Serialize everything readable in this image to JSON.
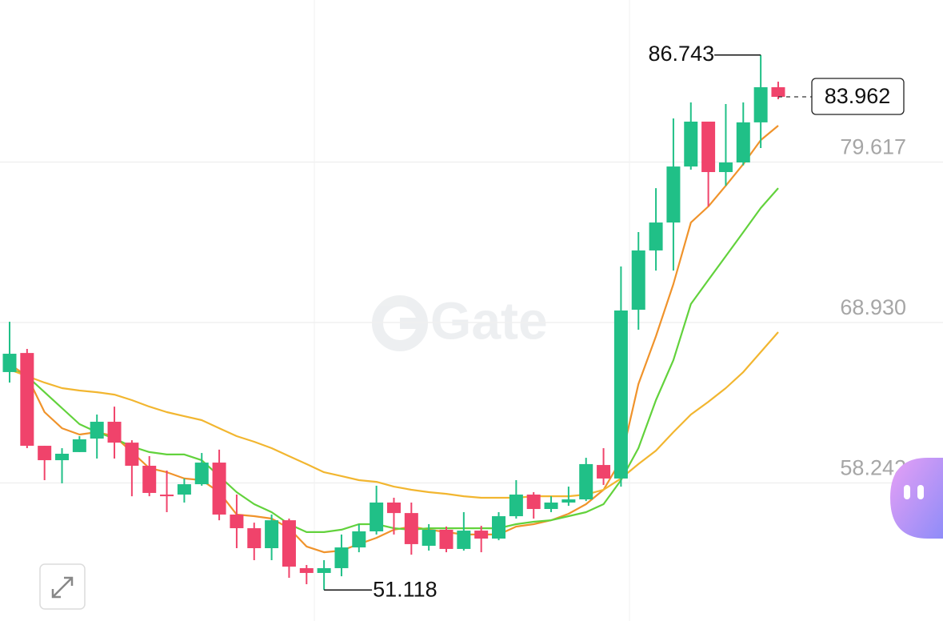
{
  "chart_data": {
    "type": "candlestick",
    "watermark": "Gate",
    "ylim": [
      49.05,
      90.41
    ],
    "yticks": [
      58.242,
      {
        "value": 68.93,
        "label": "68.930"
      },
      79.617
    ],
    "grid": true,
    "up_color": "#20c087",
    "down_color": "#f0436b",
    "open": [
      65.63,
      66.9,
      60.72,
      59.76,
      60.3,
      61.2,
      62.32,
      60.93,
      59.39,
      57.47,
      57.47,
      58.16,
      59.6,
      56.14,
      55.23,
      53.9,
      55.76,
      52.57,
      52.25,
      52.57,
      53.95,
      55.02,
      56.94,
      56.24,
      54.06,
      55.13,
      53.85,
      55.07,
      54.54,
      56.03,
      57.47,
      56.51,
      56.94,
      57.15,
      59.44,
      58.54,
      69.78,
      73.73,
      75.59,
      79.32,
      82.31,
      78.95,
      79.59,
      82.26,
      84.6
    ],
    "high": [
      68.98,
      67.17,
      60.72,
      60.56,
      61.36,
      62.8,
      63.33,
      61.09,
      60.03,
      59.07,
      58.54,
      60.24,
      60.46,
      57.47,
      55.6,
      56.14,
      55.87,
      52.78,
      53.1,
      54.81,
      55.5,
      58.06,
      57.26,
      56.94,
      55.5,
      55.34,
      56.3,
      55.39,
      56.3,
      58.43,
      57.63,
      57.36,
      58.0,
      59.92,
      60.56,
      72.66,
      74.95,
      77.88,
      82.52,
      83.59,
      82.31,
      83.48,
      83.59,
      86.743,
      84.97
    ],
    "low": [
      64.93,
      60.56,
      58.43,
      58.22,
      60.3,
      59.87,
      59.87,
      57.36,
      57.36,
      56.3,
      56.94,
      58.06,
      55.76,
      53.9,
      53.1,
      53.1,
      51.93,
      51.5,
      51.118,
      52.03,
      53.63,
      54.81,
      54.81,
      53.47,
      53.74,
      53.63,
      53.74,
      53.63,
      54.43,
      55.87,
      55.87,
      56.3,
      56.72,
      57.04,
      58.11,
      58.0,
      68.45,
      72.39,
      72.39,
      79.11,
      76.66,
      78.04,
      79.4,
      80.55,
      83.8
    ],
    "close": [
      66.85,
      60.72,
      59.76,
      60.19,
      61.15,
      62.32,
      60.93,
      59.39,
      57.58,
      57.36,
      58.16,
      59.6,
      56.14,
      55.23,
      53.9,
      55.76,
      52.67,
      52.25,
      52.57,
      53.95,
      55.02,
      56.94,
      56.24,
      54.17,
      55.13,
      53.85,
      55.07,
      54.54,
      56.03,
      57.47,
      56.51,
      56.94,
      57.15,
      59.5,
      58.54,
      69.73,
      73.73,
      75.59,
      79.32,
      82.31,
      78.95,
      79.59,
      82.26,
      84.6,
      83.962
    ],
    "lines": [
      {
        "color": "#f0932b",
        "values": [
          66.16,
          65.36,
          62.96,
          61.89,
          61.47,
          61.63,
          61.36,
          60.3,
          59.23,
          58.96,
          58.54,
          58.43,
          57.63,
          56.14,
          56.03,
          55.87,
          55.23,
          54.01,
          53.63,
          53.74,
          54.17,
          54.59,
          55.13,
          55.34,
          55.13,
          54.97,
          54.81,
          54.81,
          54.81,
          55.34,
          55.5,
          55.76,
          56.19,
          56.83,
          57.79,
          59.76,
          64.83,
          68.02,
          71.49,
          75.59,
          76.66,
          78.04,
          79.48,
          81.08,
          82.04
        ]
      },
      {
        "color": "#62d23c",
        "values": [
          65.89,
          65.36,
          64.29,
          63.23,
          62.16,
          61.63,
          61.2,
          60.67,
          60.3,
          60.14,
          60.14,
          59.76,
          58.7,
          57.63,
          56.83,
          56.3,
          55.5,
          54.97,
          54.97,
          55.13,
          55.5,
          55.5,
          55.23,
          55.13,
          55.23,
          55.23,
          55.23,
          55.23,
          55.23,
          55.5,
          55.66,
          55.76,
          56.03,
          56.3,
          56.83,
          58.43,
          60.56,
          63.76,
          66.42,
          70.16,
          71.76,
          73.35,
          74.95,
          76.55,
          77.88
        ]
      },
      {
        "color": "#f2b630",
        "values": [
          65.79,
          65.36,
          64.93,
          64.56,
          64.4,
          64.29,
          64.13,
          63.76,
          63.33,
          62.96,
          62.69,
          62.43,
          61.89,
          61.36,
          60.99,
          60.56,
          60.03,
          59.5,
          58.96,
          58.7,
          58.43,
          58.32,
          58.0,
          57.79,
          57.63,
          57.52,
          57.36,
          57.26,
          57.26,
          57.26,
          57.36,
          57.36,
          57.36,
          57.47,
          57.79,
          58.54,
          59.5,
          60.4,
          61.63,
          62.8,
          63.65,
          64.56,
          65.63,
          66.96,
          68.29
        ]
      }
    ]
  }
}
